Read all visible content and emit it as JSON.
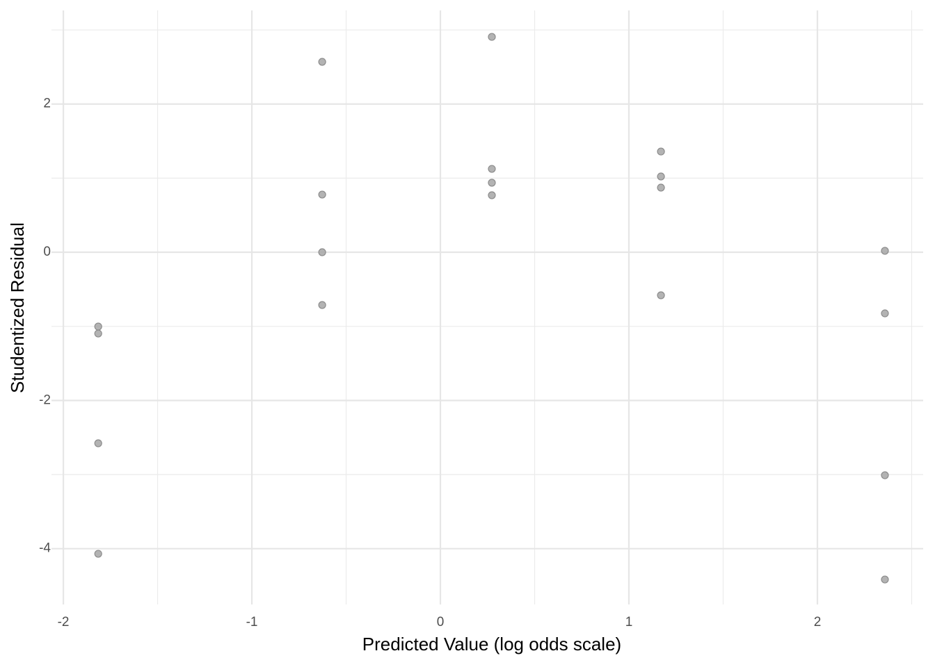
{
  "chart_data": {
    "type": "scatter",
    "x_label": "Predicted Value (log odds scale)",
    "y_label": "Studentized Residual",
    "x": [
      -1.815,
      -1.815,
      -1.815,
      -1.815,
      -0.627,
      -0.627,
      -0.627,
      -0.627,
      0.273,
      0.273,
      0.273,
      0.273,
      1.17,
      1.17,
      1.17,
      1.17,
      2.358,
      2.358,
      2.358,
      2.358
    ],
    "values": [
      -1.003,
      -1.097,
      -2.578,
      -4.069,
      2.569,
      0.778,
      0,
      -0.712,
      2.906,
      1.125,
      0.938,
      0.769,
      1.359,
      1.022,
      0.872,
      -0.581,
      0.019,
      -0.825,
      -3.009,
      -4.416
    ],
    "color": "#a6a6a6",
    "xlim": [
      -2.063,
      2.561
    ],
    "xticks": [
      -2,
      -1,
      0,
      1,
      2
    ],
    "ylim": [
      -4.753,
      3.263
    ],
    "yticks": [
      -4,
      -2,
      0,
      2
    ],
    "grid": true
  }
}
